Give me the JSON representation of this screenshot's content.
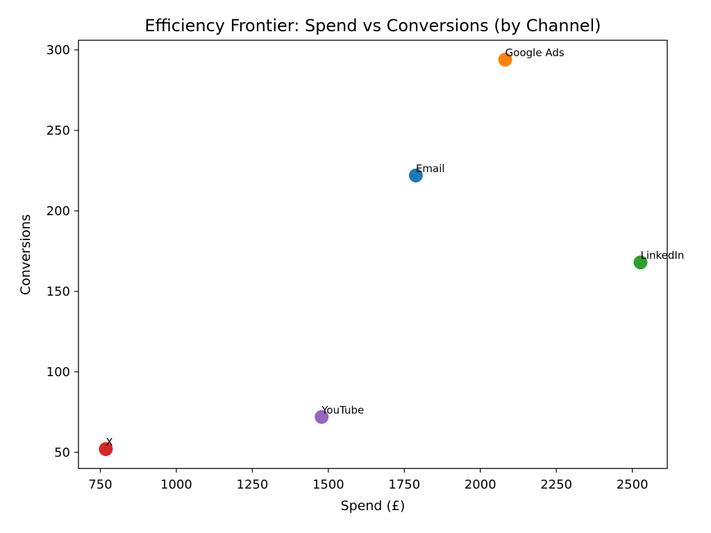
{
  "chart_data": {
    "type": "scatter",
    "title": "Efficiency Frontier: Spend vs Conversions (by Channel)",
    "xlabel": "Spend (£)",
    "ylabel": "Conversions",
    "xlim": [
      678,
      2615
    ],
    "ylim": [
      40,
      306
    ],
    "xticks": [
      750,
      1000,
      1250,
      1500,
      1750,
      2000,
      2250,
      2500
    ],
    "yticks": [
      50,
      100,
      150,
      200,
      250,
      300
    ],
    "grid": false,
    "points": [
      {
        "label": "Email",
        "x": 1788,
        "y": 222,
        "color": "#1f77b4"
      },
      {
        "label": "Google Ads",
        "x": 2082,
        "y": 294,
        "color": "#ff7f0e"
      },
      {
        "label": "LinkedIn",
        "x": 2527,
        "y": 168,
        "color": "#2ca02c"
      },
      {
        "label": "X",
        "x": 768,
        "y": 52,
        "color": "#d62728"
      },
      {
        "label": "YouTube",
        "x": 1478,
        "y": 72,
        "color": "#9467bd"
      }
    ]
  }
}
